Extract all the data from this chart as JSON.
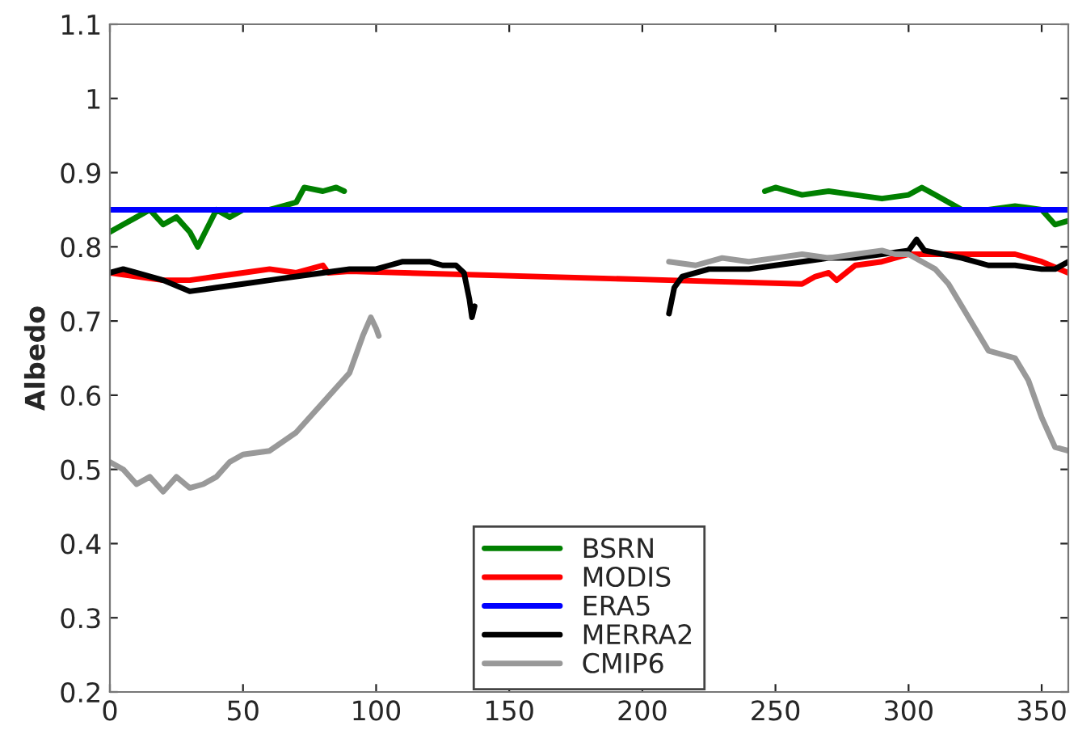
{
  "chart_data": {
    "type": "line",
    "ylabel": "Albedo",
    "xlim": [
      0,
      360
    ],
    "ylim": [
      0.2,
      1.1
    ],
    "xticks": [
      0,
      50,
      100,
      150,
      200,
      250,
      300,
      350
    ],
    "yticks": [
      0.2,
      0.3,
      0.4,
      0.5,
      0.6,
      0.7,
      0.8,
      0.9,
      1,
      1.1
    ],
    "grid": false,
    "legend": "bottom",
    "marker": "none",
    "line_style": "solid",
    "series": [
      {
        "name": "BSRN",
        "color": "#008000",
        "x": [
          0,
          5,
          10,
          15,
          20,
          25,
          30,
          33,
          40,
          45,
          50,
          60,
          70,
          73,
          80,
          85,
          88,
          150,
          246,
          250,
          260,
          270,
          280,
          290,
          300,
          305,
          310,
          320,
          330,
          340,
          350,
          355,
          360
        ],
        "values": [
          0.82,
          0.83,
          0.84,
          0.85,
          0.83,
          0.84,
          0.82,
          0.8,
          0.85,
          0.84,
          0.85,
          0.85,
          0.86,
          0.88,
          0.875,
          0.88,
          0.875,
          null,
          0.875,
          0.88,
          0.87,
          0.875,
          0.87,
          0.865,
          0.87,
          0.88,
          0.87,
          0.85,
          0.85,
          0.855,
          0.85,
          0.83,
          0.835
        ]
      },
      {
        "name": "MODIS",
        "color": "#ff0000",
        "x": [
          0,
          10,
          20,
          30,
          40,
          50,
          60,
          70,
          80,
          82,
          90,
          210,
          260,
          265,
          270,
          273,
          280,
          290,
          300,
          320,
          340,
          350,
          360
        ],
        "values": [
          0.765,
          0.76,
          0.755,
          0.755,
          0.76,
          0.765,
          0.77,
          0.765,
          0.775,
          0.765,
          0.767,
          0.755,
          0.75,
          0.76,
          0.765,
          0.755,
          0.775,
          0.78,
          0.79,
          0.79,
          0.79,
          0.78,
          0.765
        ]
      },
      {
        "name": "ERA5",
        "color": "#0000ff",
        "x": [
          0,
          360
        ],
        "values": [
          0.85,
          0.85
        ]
      },
      {
        "name": "MERRA2",
        "color": "#000000",
        "x": [
          0,
          5,
          10,
          20,
          30,
          40,
          50,
          60,
          70,
          80,
          90,
          100,
          105,
          110,
          120,
          125,
          130,
          133,
          135,
          136,
          137,
          170,
          210,
          212,
          215,
          225,
          240,
          250,
          260,
          270,
          280,
          290,
          300,
          303,
          306,
          320,
          330,
          340,
          350,
          355,
          360
        ],
        "values": [
          0.765,
          0.77,
          0.765,
          0.755,
          0.74,
          0.745,
          0.75,
          0.755,
          0.76,
          0.765,
          0.77,
          0.77,
          0.775,
          0.78,
          0.78,
          0.775,
          0.775,
          0.765,
          0.73,
          0.705,
          0.72,
          null,
          0.71,
          0.745,
          0.76,
          0.77,
          0.77,
          0.775,
          0.78,
          0.785,
          0.785,
          0.79,
          0.795,
          0.81,
          0.795,
          0.785,
          0.775,
          0.775,
          0.77,
          0.77,
          0.78
        ]
      },
      {
        "name": "CMIP6",
        "color": "#999999",
        "x": [
          0,
          5,
          10,
          15,
          20,
          25,
          30,
          35,
          40,
          45,
          50,
          60,
          70,
          80,
          90,
          95,
          98,
          100,
          101,
          150,
          210,
          220,
          230,
          240,
          250,
          260,
          270,
          280,
          290,
          295,
          300,
          310,
          315,
          320,
          325,
          330,
          340,
          345,
          350,
          355,
          360
        ],
        "values": [
          0.51,
          0.5,
          0.48,
          0.49,
          0.47,
          0.49,
          0.475,
          0.48,
          0.49,
          0.51,
          0.52,
          0.525,
          0.55,
          0.59,
          0.63,
          0.68,
          0.705,
          0.69,
          0.68,
          null,
          0.78,
          0.775,
          0.785,
          0.78,
          0.785,
          0.79,
          0.785,
          0.79,
          0.795,
          0.79,
          0.79,
          0.77,
          0.75,
          0.72,
          0.69,
          0.66,
          0.65,
          0.62,
          0.57,
          0.53,
          0.525
        ]
      }
    ]
  }
}
